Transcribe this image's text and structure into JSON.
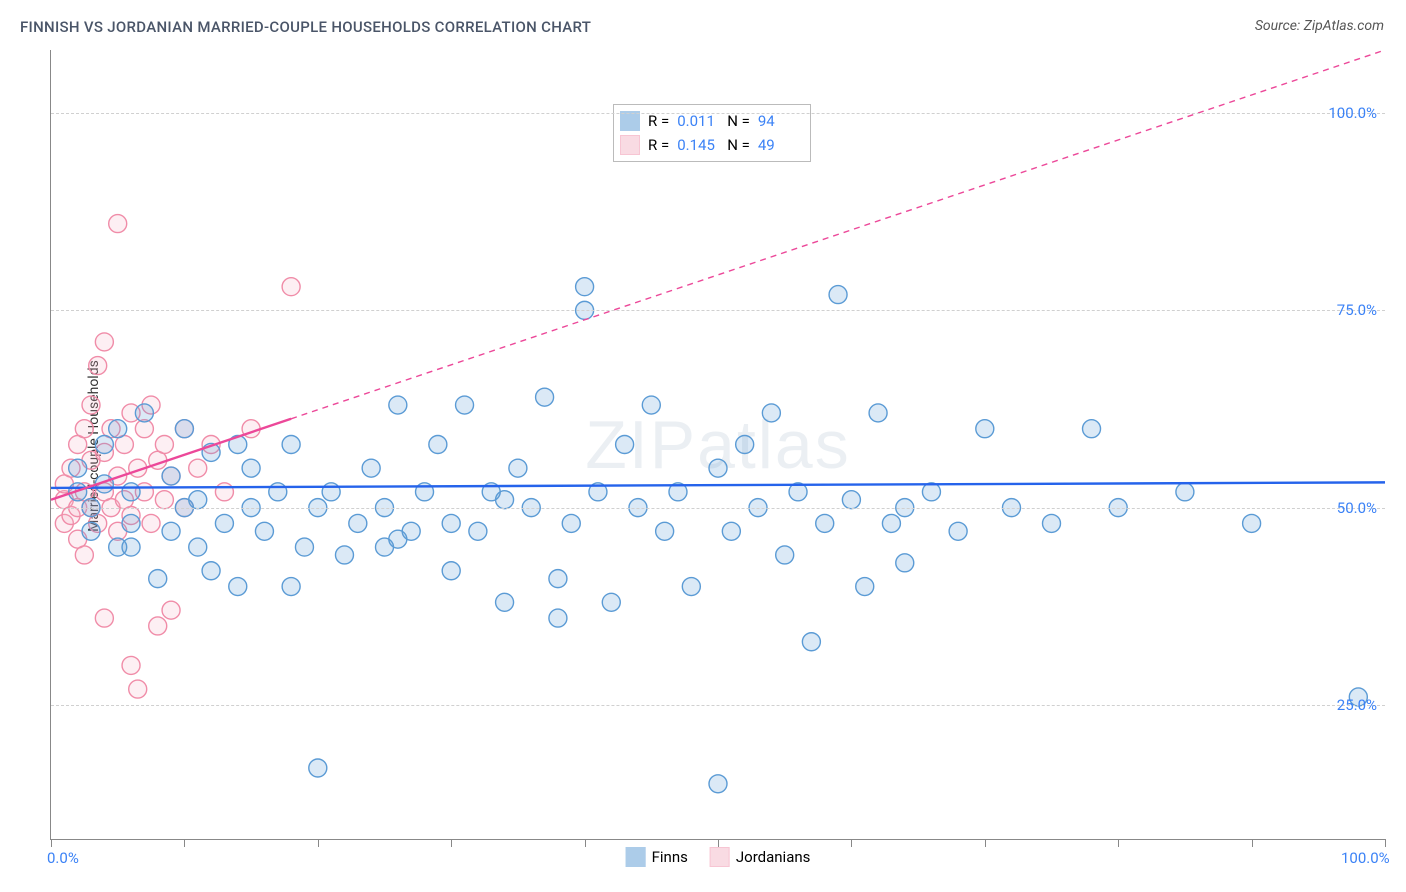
{
  "title": "FINNISH VS JORDANIAN MARRIED-COUPLE HOUSEHOLDS CORRELATION CHART",
  "title_color": "#4a5568",
  "source": "Source: ZipAtlas.com",
  "watermark": "ZIPatlas",
  "ylabel": "Married-couple Households",
  "chart": {
    "type": "scatter",
    "background_color": "#ffffff",
    "grid_color": "#d0d0d0",
    "axis_color": "#888888",
    "xlim": [
      0,
      100
    ],
    "ylim": [
      8,
      108
    ],
    "x_ticks": [
      0,
      10,
      20,
      30,
      40,
      50,
      60,
      70,
      80,
      90,
      100
    ],
    "y_gridlines": [
      25,
      50,
      75,
      100
    ],
    "x_tick_labels": {
      "0": "0.0%",
      "100": "100.0%"
    },
    "y_tick_labels": {
      "25": "25.0%",
      "50": "50.0%",
      "75": "75.0%",
      "100": "100.0%"
    },
    "tick_label_color": "#3b82f6",
    "marker_radius": 9,
    "marker_stroke_width": 1.4,
    "marker_fill_opacity": 0.22,
    "regression_line_width": 2.4,
    "regression_dashed_width": 1.4,
    "regression_dash": "6,5",
    "series": [
      {
        "name": "Finns",
        "color_stroke": "#5b9bd5",
        "color_fill": "#5b9bd5",
        "reg_color": "#2563eb",
        "R": "0.011",
        "N": "94",
        "regression": {
          "x1": 0,
          "y1": 52.5,
          "x2": 100,
          "y2": 53.2,
          "solid_to_x": 100
        },
        "points": [
          [
            2,
            52
          ],
          [
            2,
            55
          ],
          [
            3,
            50
          ],
          [
            3,
            47
          ],
          [
            4,
            53
          ],
          [
            4,
            58
          ],
          [
            5,
            60
          ],
          [
            5,
            45
          ],
          [
            6,
            52
          ],
          [
            6,
            48
          ],
          [
            7,
            62
          ],
          [
            8,
            41
          ],
          [
            9,
            54
          ],
          [
            9,
            47
          ],
          [
            10,
            60
          ],
          [
            10,
            50
          ],
          [
            11,
            45
          ],
          [
            12,
            57
          ],
          [
            12,
            42
          ],
          [
            13,
            48
          ],
          [
            14,
            58
          ],
          [
            14,
            40
          ],
          [
            15,
            50
          ],
          [
            15,
            55
          ],
          [
            16,
            47
          ],
          [
            17,
            52
          ],
          [
            18,
            40
          ],
          [
            18,
            58
          ],
          [
            19,
            45
          ],
          [
            20,
            50
          ],
          [
            20,
            17
          ],
          [
            21,
            52
          ],
          [
            22,
            44
          ],
          [
            23,
            48
          ],
          [
            24,
            55
          ],
          [
            25,
            50
          ],
          [
            25,
            45
          ],
          [
            26,
            63
          ],
          [
            27,
            47
          ],
          [
            28,
            52
          ],
          [
            29,
            58
          ],
          [
            30,
            48
          ],
          [
            30,
            42
          ],
          [
            31,
            63
          ],
          [
            32,
            47
          ],
          [
            33,
            52
          ],
          [
            34,
            38
          ],
          [
            35,
            55
          ],
          [
            36,
            50
          ],
          [
            37,
            64
          ],
          [
            38,
            41
          ],
          [
            38,
            36
          ],
          [
            39,
            48
          ],
          [
            40,
            78
          ],
          [
            40,
            75
          ],
          [
            41,
            52
          ],
          [
            42,
            38
          ],
          [
            43,
            58
          ],
          [
            44,
            50
          ],
          [
            45,
            63
          ],
          [
            46,
            47
          ],
          [
            47,
            52
          ],
          [
            48,
            40
          ],
          [
            50,
            55
          ],
          [
            50,
            15
          ],
          [
            51,
            47
          ],
          [
            52,
            58
          ],
          [
            53,
            50
          ],
          [
            54,
            62
          ],
          [
            55,
            44
          ],
          [
            56,
            52
          ],
          [
            57,
            33
          ],
          [
            58,
            48
          ],
          [
            59,
            77
          ],
          [
            60,
            51
          ],
          [
            61,
            40
          ],
          [
            62,
            62
          ],
          [
            63,
            48
          ],
          [
            64,
            50
          ],
          [
            64,
            43
          ],
          [
            66,
            52
          ],
          [
            68,
            47
          ],
          [
            70,
            60
          ],
          [
            72,
            50
          ],
          [
            75,
            48
          ],
          [
            78,
            60
          ],
          [
            80,
            50
          ],
          [
            85,
            52
          ],
          [
            90,
            48
          ],
          [
            98,
            26
          ],
          [
            6,
            45
          ],
          [
            11,
            51
          ],
          [
            26,
            46
          ],
          [
            34,
            51
          ]
        ]
      },
      {
        "name": "Jordanians",
        "color_stroke": "#f08ca8",
        "color_fill": "#f5b8c8",
        "reg_color": "#ec4899",
        "R": "0.145",
        "N": "49",
        "regression": {
          "x1": 0,
          "y1": 51,
          "x2": 100,
          "y2": 108,
          "solid_to_x": 18
        },
        "points": [
          [
            1,
            51
          ],
          [
            1,
            48
          ],
          [
            1,
            53
          ],
          [
            1.5,
            55
          ],
          [
            1.5,
            49
          ],
          [
            2,
            58
          ],
          [
            2,
            50
          ],
          [
            2,
            46
          ],
          [
            2.5,
            52
          ],
          [
            2.5,
            60
          ],
          [
            2.5,
            44
          ],
          [
            3,
            56
          ],
          [
            3,
            50
          ],
          [
            3,
            63
          ],
          [
            3.5,
            48
          ],
          [
            3.5,
            68
          ],
          [
            4,
            52
          ],
          [
            4,
            57
          ],
          [
            4,
            71
          ],
          [
            4,
            36
          ],
          [
            4.5,
            50
          ],
          [
            4.5,
            60
          ],
          [
            5,
            54
          ],
          [
            5,
            47
          ],
          [
            5,
            86
          ],
          [
            5.5,
            51
          ],
          [
            5.5,
            58
          ],
          [
            6,
            62
          ],
          [
            6,
            49
          ],
          [
            6,
            30
          ],
          [
            6.5,
            55
          ],
          [
            6.5,
            27
          ],
          [
            7,
            60
          ],
          [
            7,
            52
          ],
          [
            7.5,
            48
          ],
          [
            7.5,
            63
          ],
          [
            8,
            56
          ],
          [
            8,
            35
          ],
          [
            8.5,
            51
          ],
          [
            8.5,
            58
          ],
          [
            9,
            54
          ],
          [
            9,
            37
          ],
          [
            10,
            60
          ],
          [
            10,
            50
          ],
          [
            11,
            55
          ],
          [
            12,
            58
          ],
          [
            13,
            52
          ],
          [
            15,
            60
          ],
          [
            18,
            78
          ]
        ]
      }
    ]
  },
  "stat_legend": {
    "r_label": "R =",
    "n_label": "N =",
    "label_color": "#333333",
    "value_color": "#3b82f6"
  },
  "series_legend_labels": {
    "finns": "Finns",
    "jordanians": "Jordanians"
  }
}
